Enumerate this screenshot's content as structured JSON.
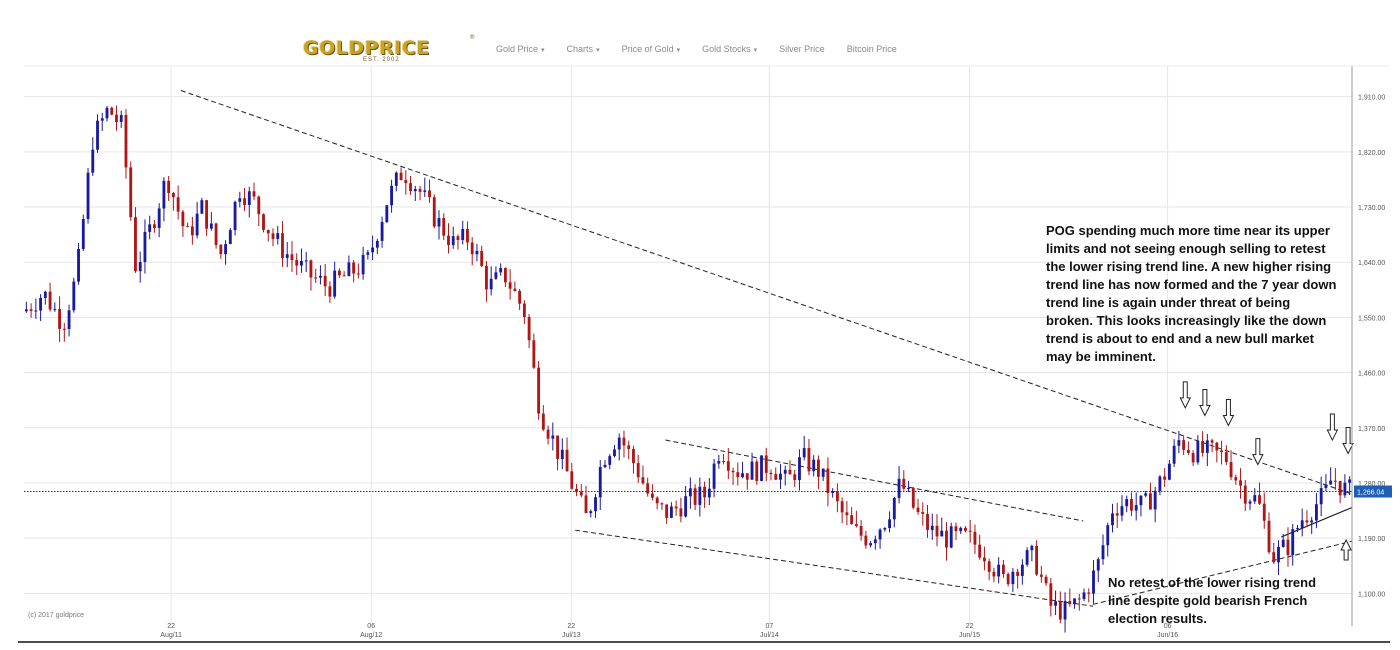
{
  "header": {
    "logo_text": "GOLDPRICE",
    "logo_est": "EST. 2002",
    "logo_reg": "®",
    "nav_items": [
      {
        "label": "Gold Price",
        "caret": "▾"
      },
      {
        "label": "Charts",
        "caret": "▾"
      },
      {
        "label": "Price of Gold",
        "caret": "▾"
      },
      {
        "label": "Gold Stocks",
        "caret": "▾"
      },
      {
        "label": "Silver Price",
        "caret": ""
      },
      {
        "label": "Bitcoin Price",
        "caret": ""
      }
    ]
  },
  "annotations": {
    "top": "POG spending much more time near its upper limits and not seeing enough selling to retest the lower rising trend line. A new higher rising trend line has now formed and the 7 year down trend line is again under threat of being broken. This looks increasingly like the down trend is about to end and a new bull market may be imminent.",
    "bottom": "No retest of the lower rising trend line despite gold bearish French election results."
  },
  "copyright": "(c) 2017 goldprice",
  "colors": {
    "up_candle": "#1a1aa0",
    "down_candle": "#b01616",
    "trend_line": "#222222",
    "price_tag_bg": "#1f5fb3",
    "grid": "#e6e6e6"
  },
  "chart_data": {
    "type": "candlestick",
    "title": "",
    "xlabel": "",
    "ylabel": "",
    "ylim": [
      1050,
      1960
    ],
    "y_ticks": [
      1100,
      1190,
      1280,
      1370,
      1460,
      1550,
      1640,
      1730,
      1820,
      1910
    ],
    "y_tick_labels": [
      "1,100.00",
      "1,190.00",
      "1,280.00",
      "1,370.00",
      "1,460.00",
      "1,550.00",
      "1,640.00",
      "1,730.00",
      "1,820.00",
      "1,910.00"
    ],
    "x_range": [
      2010.55,
      2017.32
    ],
    "x_ticks": [
      {
        "x": 2011.3,
        "day": "22",
        "month": "Aug/11"
      },
      {
        "x": 2012.32,
        "day": "06",
        "month": "Aug/12"
      },
      {
        "x": 2013.34,
        "day": "22",
        "month": "Jul/13"
      },
      {
        "x": 2014.35,
        "day": "07",
        "month": "Jul/14"
      },
      {
        "x": 2015.37,
        "day": "22",
        "month": "Jun/15"
      },
      {
        "x": 2016.38,
        "day": "06",
        "month": "Jun/16"
      }
    ],
    "current_price": 1266.04,
    "current_price_label": "1,266.04",
    "grid": true,
    "waypoints": [
      [
        2010.55,
        1560
      ],
      [
        2010.65,
        1590
      ],
      [
        2010.75,
        1540
      ],
      [
        2010.82,
        1620
      ],
      [
        2010.9,
        1840
      ],
      [
        2010.98,
        1890
      ],
      [
        2011.05,
        1860
      ],
      [
        2011.12,
        1630
      ],
      [
        2011.2,
        1700
      ],
      [
        2011.28,
        1780
      ],
      [
        2011.38,
        1680
      ],
      [
        2011.46,
        1730
      ],
      [
        2011.55,
        1650
      ],
      [
        2011.65,
        1760
      ],
      [
        2011.72,
        1740
      ],
      [
        2011.82,
        1680
      ],
      [
        2011.9,
        1650
      ],
      [
        2012.0,
        1620
      ],
      [
        2012.1,
        1600
      ],
      [
        2012.2,
        1620
      ],
      [
        2012.3,
        1640
      ],
      [
        2012.4,
        1740
      ],
      [
        2012.48,
        1790
      ],
      [
        2012.56,
        1760
      ],
      [
        2012.65,
        1710
      ],
      [
        2012.74,
        1670
      ],
      [
        2012.82,
        1680
      ],
      [
        2012.92,
        1600
      ],
      [
        2013.0,
        1620
      ],
      [
        2013.1,
        1560
      ],
      [
        2013.18,
        1400
      ],
      [
        2013.26,
        1340
      ],
      [
        2013.34,
        1280
      ],
      [
        2013.42,
        1220
      ],
      [
        2013.5,
        1320
      ],
      [
        2013.58,
        1360
      ],
      [
        2013.68,
        1300
      ],
      [
        2013.76,
        1240
      ],
      [
        2013.84,
        1230
      ],
      [
        2013.92,
        1250
      ],
      [
        2014.02,
        1260
      ],
      [
        2014.1,
        1340
      ],
      [
        2014.18,
        1300
      ],
      [
        2014.26,
        1300
      ],
      [
        2014.36,
        1310
      ],
      [
        2014.44,
        1280
      ],
      [
        2014.52,
        1320
      ],
      [
        2014.6,
        1300
      ],
      [
        2014.7,
        1240
      ],
      [
        2014.78,
        1200
      ],
      [
        2014.86,
        1190
      ],
      [
        2014.94,
        1220
      ],
      [
        2015.02,
        1280
      ],
      [
        2015.1,
        1230
      ],
      [
        2015.18,
        1200
      ],
      [
        2015.26,
        1190
      ],
      [
        2015.36,
        1190
      ],
      [
        2015.44,
        1170
      ],
      [
        2015.54,
        1120
      ],
      [
        2015.62,
        1150
      ],
      [
        2015.7,
        1160
      ],
      [
        2015.78,
        1080
      ],
      [
        2015.86,
        1070
      ],
      [
        2015.94,
        1090
      ],
      [
        2016.02,
        1140
      ],
      [
        2016.1,
        1240
      ],
      [
        2016.18,
        1250
      ],
      [
        2016.26,
        1240
      ],
      [
        2016.36,
        1290
      ],
      [
        2016.44,
        1350
      ],
      [
        2016.52,
        1330
      ],
      [
        2016.6,
        1330
      ],
      [
        2016.68,
        1320
      ],
      [
        2016.76,
        1270
      ],
      [
        2016.84,
        1250
      ],
      [
        2016.92,
        1160
      ],
      [
        2017.0,
        1180
      ],
      [
        2017.06,
        1220
      ],
      [
        2017.12,
        1240
      ],
      [
        2017.18,
        1260
      ],
      [
        2017.22,
        1290
      ],
      [
        2017.28,
        1270
      ],
      [
        2017.32,
        1266
      ]
    ],
    "trend_lines": [
      {
        "name": "7 year down trend line",
        "style": "dashed",
        "from": [
          2011.35,
          1920
        ],
        "to": [
          2017.32,
          1262
        ]
      },
      {
        "name": "lower falling channel top",
        "style": "dashed",
        "from": [
          2013.82,
          1350
        ],
        "to": [
          2015.95,
          1218
        ]
      },
      {
        "name": "lower falling channel bottom",
        "style": "dashed",
        "from": [
          2013.36,
          1203
        ],
        "to": [
          2016.0,
          1079
        ]
      },
      {
        "name": "lower rising trend line",
        "style": "dashed",
        "from": [
          2016.0,
          1082
        ],
        "to": [
          2017.32,
          1185
        ]
      },
      {
        "name": "higher rising trend line",
        "style": "solid",
        "from": [
          2016.96,
          1192
        ],
        "to": [
          2017.32,
          1240
        ]
      }
    ],
    "down_arrows_x": [
      2016.47,
      2016.57,
      2016.69,
      2016.84,
      2017.22,
      2017.3
    ],
    "up_arrow_x": 2017.29
  }
}
